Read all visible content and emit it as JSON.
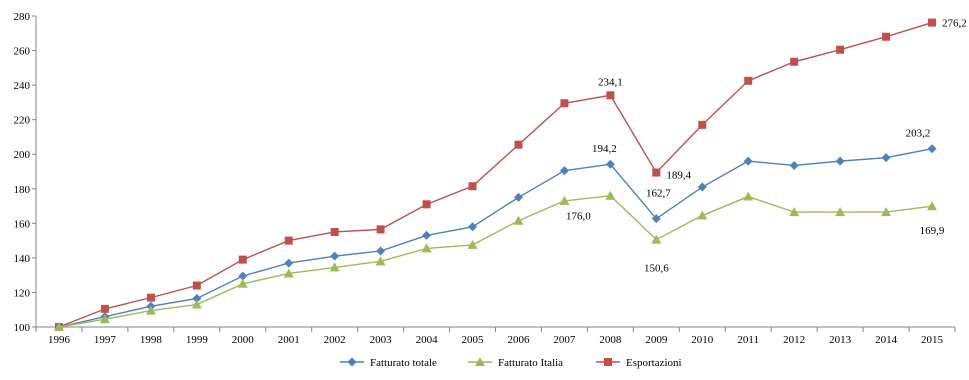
{
  "chart_data": {
    "type": "line",
    "title": "",
    "xlabel": "",
    "ylabel": "",
    "ylim": [
      100,
      280
    ],
    "y_ticks": [
      100,
      120,
      140,
      160,
      180,
      200,
      220,
      240,
      260,
      280
    ],
    "grid": false,
    "legend_position": "bottom",
    "categories": [
      "1996",
      "1997",
      "1998",
      "1999",
      "2000",
      "2001",
      "2002",
      "2003",
      "2004",
      "2005",
      "2006",
      "2007",
      "2008",
      "2009",
      "2010",
      "2011",
      "2012",
      "2013",
      "2014",
      "2015"
    ],
    "series": [
      {
        "name": "Fatturato totale",
        "color": "#4F81BD",
        "marker": "diamond",
        "values": [
          100,
          106,
          112,
          116.5,
          129.5,
          137,
          141,
          144,
          153,
          158,
          175,
          190.5,
          194.2,
          162.7,
          181,
          196,
          193.5,
          196,
          198,
          203.2
        ]
      },
      {
        "name": "Fatturato Italia",
        "color": "#9BBB59",
        "marker": "triangle",
        "values": [
          100,
          104.5,
          109.5,
          113,
          125,
          131,
          134.5,
          138,
          145.5,
          147.5,
          161.5,
          173,
          176.0,
          150.6,
          164.5,
          175.5,
          166.5,
          166.5,
          166.5,
          169.9
        ]
      },
      {
        "name": "Esportazioni",
        "color": "#C0504D",
        "marker": "square",
        "values": [
          100,
          110.5,
          117,
          124,
          139,
          150,
          155,
          156.5,
          171,
          181.5,
          205.5,
          229.5,
          234.1,
          189.4,
          217,
          242.5,
          253.5,
          260.5,
          268,
          276.2
        ]
      }
    ],
    "annotations": [
      {
        "series": 2,
        "index": 12,
        "text": "234,1",
        "dx": 0,
        "dy": -10,
        "anchor": "middle"
      },
      {
        "series": 2,
        "index": 13,
        "text": "189,4",
        "dx": 10,
        "dy": 6,
        "anchor": "start"
      },
      {
        "series": 2,
        "index": 19,
        "text": "276,2",
        "dx": 10,
        "dy": 4,
        "anchor": "start"
      },
      {
        "series": 0,
        "index": 12,
        "text": "194,2",
        "dx": -6,
        "dy": -12,
        "anchor": "middle"
      },
      {
        "series": 0,
        "index": 13,
        "text": "162,7",
        "dx": 2,
        "dy": -22,
        "anchor": "middle"
      },
      {
        "series": 0,
        "index": 19,
        "text": "203,2",
        "dx": -14,
        "dy": -12,
        "anchor": "middle"
      },
      {
        "series": 1,
        "index": 12,
        "text": "176,0",
        "dx": -32,
        "dy": 24,
        "anchor": "middle"
      },
      {
        "series": 1,
        "index": 13,
        "text": "150,6",
        "dx": 0,
        "dy": 32,
        "anchor": "middle"
      },
      {
        "series": 1,
        "index": 19,
        "text": "169,9",
        "dx": 0,
        "dy": 28,
        "anchor": "middle"
      }
    ]
  }
}
